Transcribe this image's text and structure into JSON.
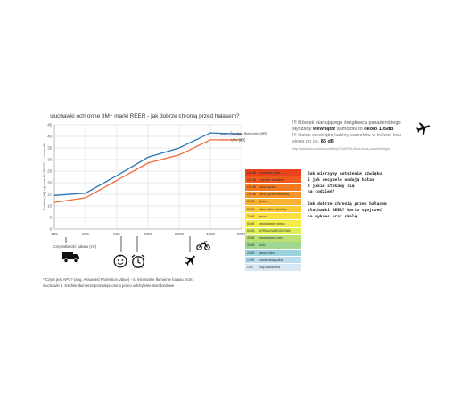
{
  "chart_data": {
    "type": "line",
    "title": "słuchawki ochronne 3M+ marki REER - jak dobrze chronią przed hałasem?",
    "xlabel": "Częstotliwość hałasu (Hz)",
    "ylabel": "Tłumienie [dB] (wg norm PN-EN 352-1 : norma dB)",
    "categories": [
      "125",
      "250",
      "500",
      "1000",
      "2000",
      "4000",
      "8000"
    ],
    "ylim": [
      0,
      45
    ],
    "yticks": [
      "0",
      "5",
      "10",
      "15",
      "20",
      "25",
      "30",
      "35",
      "40",
      "45"
    ],
    "grid": true,
    "legend": "right",
    "series": [
      {
        "name": "Średnie tłumienie (dB)",
        "color": "#2e75b6",
        "values": [
          14.5,
          15.5,
          23,
          31,
          35,
          41.5,
          41
        ]
      },
      {
        "name": "APV (dB)",
        "color": "#f26b3a",
        "values": [
          11.5,
          13.5,
          21,
          28.5,
          32,
          38.5,
          38.5
        ]
      }
    ]
  },
  "notes": {
    "line1": "!!! Dźwięk startującego śmigłowca pasażerskiego",
    "line2_prefix": "słyszany ",
    "line2_bold1": "wewnątrz",
    "line2_mid": " samolotu to ",
    "line2_bold2": "około 105dB",
    "line3": "!!! Hałas wewnątrz kabiny samolotu w trakcie lotu",
    "line4_prefix": "sięga do ok. ",
    "line4_bold": "85 dB",
    "line5": "http://www.bbc.com/future/story/20160226-tricks-for-a-peaceful-flight"
  },
  "noise_scale": [
    {
      "db": "130 dB",
      "desc": "przeraźliwy hałas",
      "color": "#e8431e"
    },
    {
      "db": "120 dB",
      "desc": "próg bólu, szkodliwy",
      "color": "#ef5a1e"
    },
    {
      "db": "110 dB",
      "desc": "bardzo głośno",
      "color": "#f47a22"
    },
    {
      "db": "100 dB",
      "desc": "bardzo głośno/szkodliwy",
      "color": "#f7952a"
    },
    {
      "db": "90 dB",
      "desc": "głośno",
      "color": "#f9b12f"
    },
    {
      "db": "80 dB",
      "desc": "hałas, słabo szkodliwy",
      "color": "#fbc936"
    },
    {
      "db": "70 dB",
      "desc": "głośno",
      "color": "#fde040"
    },
    {
      "db": "60 dB",
      "desc": "umiarkowanie głośno",
      "color": "#f4ec48"
    },
    {
      "db": "50 dB",
      "desc": "NORMALNA ROZMOWA",
      "color": "#dfee55"
    },
    {
      "db": "40 dB",
      "desc": "umiarkowanie cicho",
      "color": "#b9e070"
    },
    {
      "db": "30 dB",
      "desc": "cicho",
      "color": "#9fd690"
    },
    {
      "db": "20 dB",
      "desc": "bardzo cicho",
      "color": "#9dd3dc"
    },
    {
      "db": "10 dB",
      "desc": "prawie niesłyszalne",
      "color": "#b9dcee"
    },
    {
      "db": "0 dB",
      "desc": "próg słyszalności",
      "color": "#d7e8f4"
    }
  ],
  "questions": {
    "q1": [
      "Jak mierzymy natężenie dźwięku",
      "i jak decybele oddają hałas",
      "z jakim stykamy się",
      "na codzień?"
    ],
    "q2": [
      "Jak dobrze chronią przed hałasem",
      "słuchawki REER? Warto spojrzeć",
      "na wykres oraz skalę"
    ]
  },
  "footnote": {
    "line1": "* Czym jest APV? (ang. Assumed Protection Value) - to minimalne tłumienie hałasu przez",
    "line2": "słuchawki tj. średnie tłumienie pomniejszone o jedno odchylenie standardowe"
  },
  "icons": [
    "truck-icon",
    "baby-face-icon",
    "alarm-clock-icon",
    "airplane-icon",
    "motorcycle-icon",
    "airplane-icon"
  ]
}
